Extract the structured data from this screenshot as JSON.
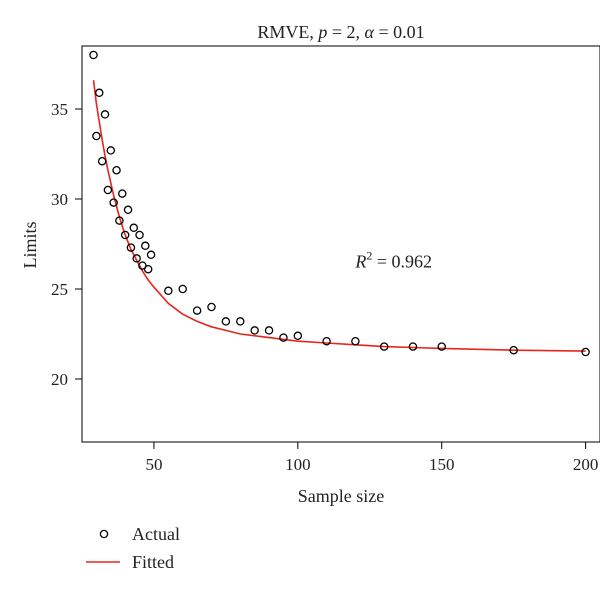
{
  "chart_data": {
    "type": "scatter",
    "title_prefix": "RMVE, ",
    "title_p_symbol": "p",
    "title_p_value": " = 2, ",
    "title_alpha_symbol": "α",
    "title_alpha_value": " = 0.01",
    "xlabel": "Sample size",
    "ylabel": "Limits",
    "xlim": [
      25,
      205
    ],
    "ylim": [
      16.5,
      38.5
    ],
    "xticks": [
      50,
      100,
      150,
      200
    ],
    "yticks": [
      20,
      25,
      30,
      35
    ],
    "grid": false,
    "legend_position": "bottom-left",
    "annotation": {
      "symbol": "R",
      "superscript": "2",
      "value": " = 0.962",
      "x": 120,
      "y": 26.2
    },
    "series": [
      {
        "name": "Actual",
        "kind": "points",
        "marker": "open-circle",
        "color": "#000000",
        "points": [
          [
            29,
            38.0
          ],
          [
            30,
            33.5
          ],
          [
            31,
            35.9
          ],
          [
            32,
            32.1
          ],
          [
            33,
            34.7
          ],
          [
            34,
            30.5
          ],
          [
            35,
            32.7
          ],
          [
            36,
            29.8
          ],
          [
            37,
            31.6
          ],
          [
            38,
            28.8
          ],
          [
            39,
            30.3
          ],
          [
            40,
            28.0
          ],
          [
            41,
            29.4
          ],
          [
            42,
            27.3
          ],
          [
            43,
            28.4
          ],
          [
            44,
            26.7
          ],
          [
            45,
            28.0
          ],
          [
            46,
            26.3
          ],
          [
            47,
            27.4
          ],
          [
            48,
            26.1
          ],
          [
            49,
            26.9
          ],
          [
            55,
            24.9
          ],
          [
            60,
            25.0
          ],
          [
            65,
            23.8
          ],
          [
            70,
            24.0
          ],
          [
            75,
            23.2
          ],
          [
            80,
            23.2
          ],
          [
            85,
            22.7
          ],
          [
            90,
            22.7
          ],
          [
            95,
            22.3
          ],
          [
            100,
            22.4
          ],
          [
            110,
            22.1
          ],
          [
            120,
            22.1
          ],
          [
            130,
            21.8
          ],
          [
            140,
            21.8
          ],
          [
            150,
            21.8
          ],
          [
            175,
            21.6
          ],
          [
            200,
            21.5
          ]
        ]
      },
      {
        "name": "Fitted",
        "kind": "line",
        "color": "#e8251c",
        "points": [
          [
            29,
            36.6
          ],
          [
            30,
            35.3
          ],
          [
            31,
            34.3
          ],
          [
            32,
            33.3
          ],
          [
            33,
            32.4
          ],
          [
            34,
            31.6
          ],
          [
            35,
            30.9
          ],
          [
            36,
            30.2
          ],
          [
            38,
            29.0
          ],
          [
            40,
            28.0
          ],
          [
            42,
            27.2
          ],
          [
            44,
            26.6
          ],
          [
            46,
            26.0
          ],
          [
            48,
            25.5
          ],
          [
            50,
            25.1
          ],
          [
            55,
            24.2
          ],
          [
            60,
            23.6
          ],
          [
            65,
            23.2
          ],
          [
            70,
            22.9
          ],
          [
            75,
            22.7
          ],
          [
            80,
            22.5
          ],
          [
            90,
            22.3
          ],
          [
            100,
            22.1
          ],
          [
            110,
            22.0
          ],
          [
            120,
            21.9
          ],
          [
            130,
            21.8
          ],
          [
            140,
            21.75
          ],
          [
            150,
            21.7
          ],
          [
            175,
            21.6
          ],
          [
            200,
            21.55
          ]
        ]
      }
    ]
  }
}
